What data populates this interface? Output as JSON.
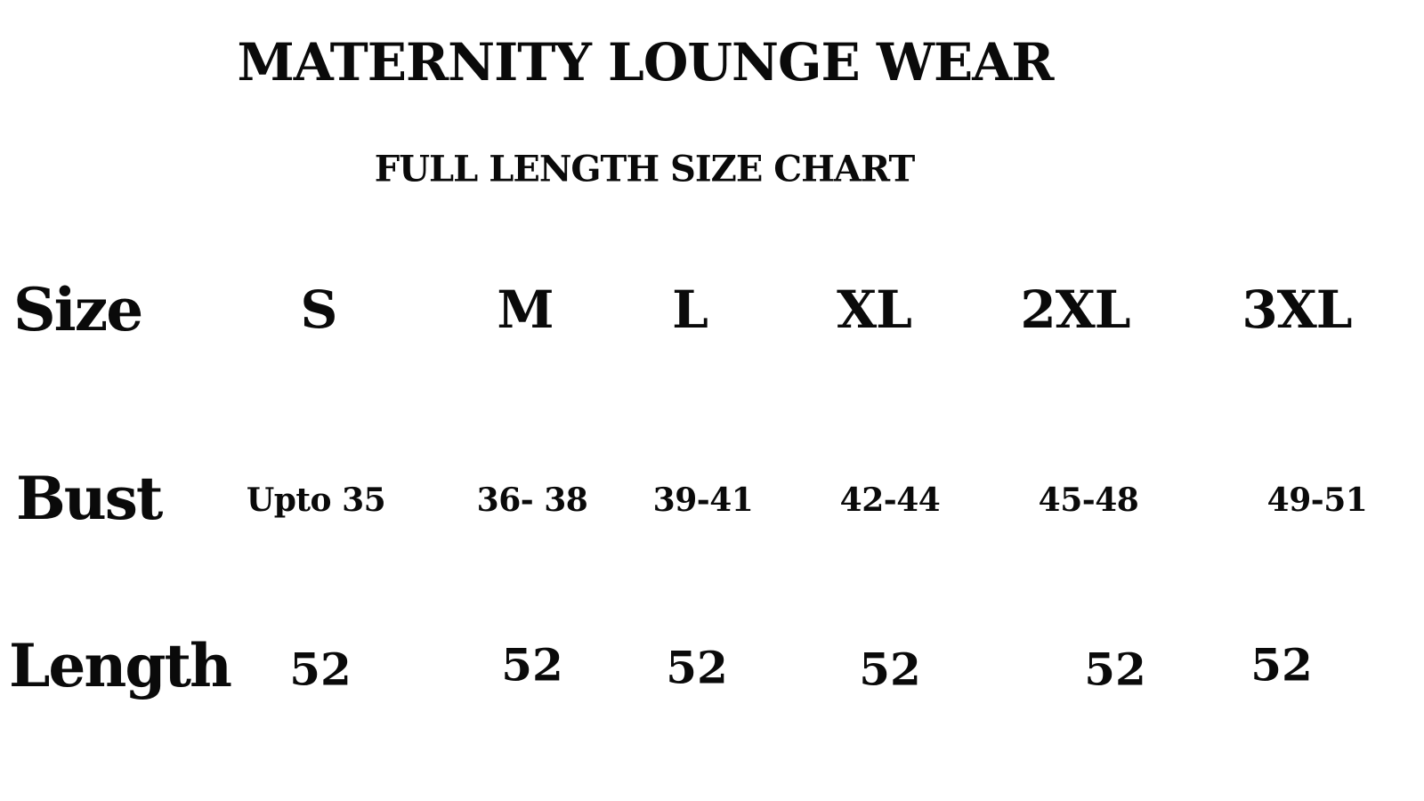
{
  "title": "MATERNITY LOUNGE WEAR",
  "subtitle": "FULL LENGTH SIZE CHART",
  "table": {
    "row_labels": [
      "Size",
      "Bust",
      "Length"
    ],
    "sizes": [
      "S",
      "M",
      "L",
      "XL",
      "2XL",
      "3XL"
    ],
    "bust": [
      "Upto 35",
      "36- 38",
      "39-41",
      "42-44",
      "45-48",
      "49-51"
    ],
    "length": [
      "52",
      "52",
      "52",
      "52",
      "52",
      "52"
    ]
  }
}
